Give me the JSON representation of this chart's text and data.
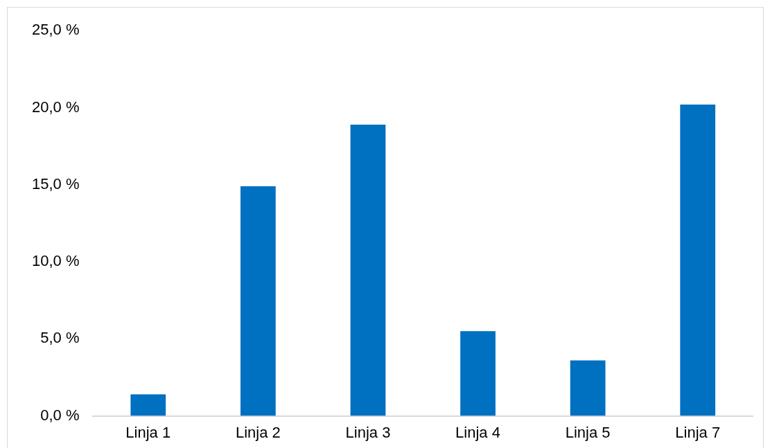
{
  "chart_data": {
    "type": "bar",
    "categories": [
      "Linja 1",
      "Linja 2",
      "Linja 3",
      "Linja 4",
      "Linja 5",
      "Linja 7"
    ],
    "values": [
      1.4,
      14.9,
      18.9,
      5.5,
      3.6,
      20.2
    ],
    "color": "#0070c0",
    "ylim": [
      0,
      25
    ],
    "yticks": [
      {
        "value": 0,
        "label": "0,0 %"
      },
      {
        "value": 5,
        "label": "5,0 %"
      },
      {
        "value": 10,
        "label": "10,0 %"
      },
      {
        "value": 15,
        "label": "15,0 %"
      },
      {
        "value": 20,
        "label": "20,0 %"
      },
      {
        "value": 25,
        "label": "25,0 %"
      }
    ],
    "grid": false,
    "legend": false
  }
}
